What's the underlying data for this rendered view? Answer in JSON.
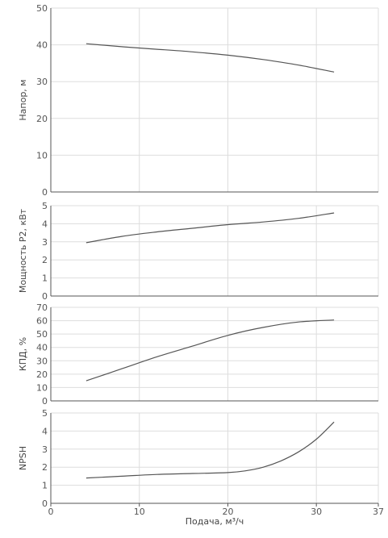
{
  "chart_data": [
    {
      "type": "line",
      "ylabel": "Напор, м",
      "ylim": [
        0,
        50
      ],
      "yticks": [
        0,
        10,
        20,
        30,
        40,
        50
      ],
      "xlim": [
        0,
        37
      ],
      "grid": true,
      "series": [
        {
          "x": [
            4,
            8,
            12,
            16,
            20,
            24,
            28,
            32
          ],
          "y": [
            40.3,
            39.5,
            38.8,
            38.1,
            37.2,
            36.0,
            34.5,
            32.6
          ]
        }
      ]
    },
    {
      "type": "line",
      "ylabel": "Мощность P2, кВт",
      "ylim": [
        0,
        5
      ],
      "yticks": [
        0,
        1,
        2,
        3,
        4,
        5
      ],
      "xlim": [
        0,
        37
      ],
      "grid": true,
      "series": [
        {
          "x": [
            4,
            8,
            12,
            16,
            20,
            24,
            28,
            32
          ],
          "y": [
            2.95,
            3.3,
            3.55,
            3.75,
            3.95,
            4.1,
            4.3,
            4.6
          ]
        }
      ]
    },
    {
      "type": "line",
      "ylabel": "КПД, %",
      "ylim": [
        0,
        70
      ],
      "yticks": [
        0,
        10,
        20,
        30,
        40,
        50,
        60,
        70
      ],
      "xlim": [
        0,
        37
      ],
      "grid": true,
      "series": [
        {
          "x": [
            4,
            8,
            12,
            16,
            20,
            24,
            28,
            32
          ],
          "y": [
            15,
            24,
            33,
            41,
            49,
            55,
            59,
            60.5
          ]
        }
      ]
    },
    {
      "type": "line",
      "ylabel": "NPSH",
      "ylim": [
        0,
        5
      ],
      "yticks": [
        0,
        1,
        2,
        3,
        4,
        5
      ],
      "xlim": [
        0,
        37
      ],
      "xticks": [
        0,
        10,
        20,
        30,
        37
      ],
      "xlabel": "Подача, м³/ч",
      "grid": true,
      "series": [
        {
          "x": [
            4,
            8,
            12,
            16,
            20,
            22,
            24,
            26,
            28,
            30,
            32
          ],
          "y": [
            1.4,
            1.5,
            1.6,
            1.65,
            1.7,
            1.8,
            2.0,
            2.35,
            2.85,
            3.55,
            4.5
          ]
        }
      ]
    }
  ]
}
